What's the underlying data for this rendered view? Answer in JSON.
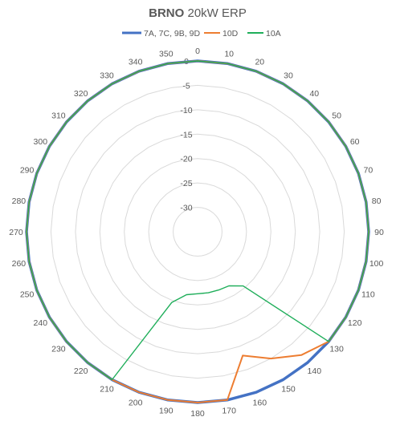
{
  "chart_data": {
    "type": "radar",
    "title_bold": "BRNO",
    "title_rest": " 20kW ERP",
    "categories": [
      "0",
      "10",
      "20",
      "30",
      "40",
      "50",
      "60",
      "70",
      "80",
      "90",
      "100",
      "110",
      "120",
      "130",
      "140",
      "150",
      "160",
      "170",
      "180",
      "190",
      "200",
      "210",
      "220",
      "230",
      "240",
      "250",
      "260",
      "270",
      "280",
      "290",
      "300",
      "310",
      "320",
      "330",
      "340",
      "350"
    ],
    "radial_ticks": [
      "0",
      "-5",
      "-10",
      "-15",
      "-20",
      "-25",
      "-30"
    ],
    "radial_values": [
      0,
      -5,
      -10,
      -15,
      -20,
      -25,
      -30
    ],
    "rlim": [
      -35,
      0
    ],
    "legend_position": "top",
    "series": [
      {
        "name": "7A, 7C, 9B, 9D",
        "color": "#4472C4",
        "width": 3.5,
        "values": [
          0,
          0,
          0,
          0,
          0,
          0,
          0,
          0,
          0,
          0,
          0,
          0,
          0,
          0,
          0,
          0,
          0,
          0,
          0,
          0,
          0,
          0,
          0,
          0,
          0,
          0,
          0,
          0,
          0,
          0,
          0,
          0,
          0,
          0,
          0,
          0
        ]
      },
      {
        "name": "10D",
        "color": "#ED7D31",
        "width": 2,
        "values": [
          0,
          0,
          0,
          0,
          0,
          0,
          0,
          0,
          0,
          0,
          0,
          0,
          0,
          0,
          -2,
          -5,
          -8,
          0,
          0,
          0,
          0,
          0,
          0,
          0,
          0,
          0,
          0,
          0,
          0,
          0,
          0,
          0,
          0,
          0,
          0,
          0
        ]
      },
      {
        "name": "10A",
        "color": "#1FAE5A",
        "width": 1.4,
        "values": [
          0,
          0,
          0,
          0,
          0,
          0,
          0,
          0,
          0,
          0,
          0,
          0,
          0,
          0,
          -20.5,
          -22.2,
          -22.3,
          -22.3,
          -22.3,
          -21.9,
          -19.6,
          0,
          0,
          0,
          0,
          0,
          0,
          0,
          0,
          0,
          0,
          0,
          0,
          0,
          0,
          0
        ]
      }
    ]
  }
}
